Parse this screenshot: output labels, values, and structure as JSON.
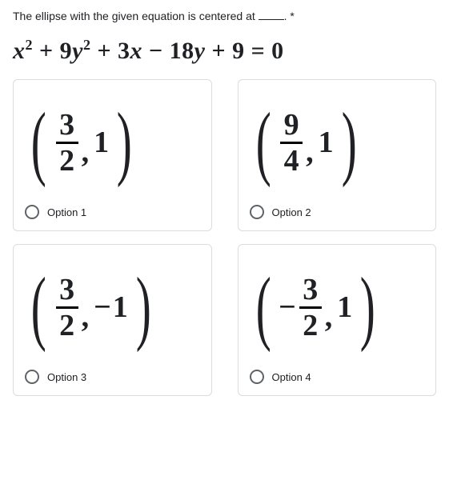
{
  "question": {
    "prefix": "The ellipse with the given equation is centered at ",
    "suffix": ". *"
  },
  "equation": {
    "text_html": "x² + 9y² + 3x − 18y + 9 = 0"
  },
  "options": [
    {
      "label": "Option 1",
      "leading_neg": "",
      "num": "3",
      "den": "2",
      "sign": "",
      "y": "1"
    },
    {
      "label": "Option 2",
      "leading_neg": "",
      "num": "9",
      "den": "4",
      "sign": "",
      "y": "1"
    },
    {
      "label": "Option 3",
      "leading_neg": "",
      "num": "3",
      "den": "2",
      "sign": "−",
      "y": "1"
    },
    {
      "label": "Option 4",
      "leading_neg": "−",
      "num": "3",
      "den": "2",
      "sign": "",
      "y": "1"
    }
  ],
  "style": {
    "border_color": "#dadce0",
    "radio_border": "#5f6368"
  }
}
